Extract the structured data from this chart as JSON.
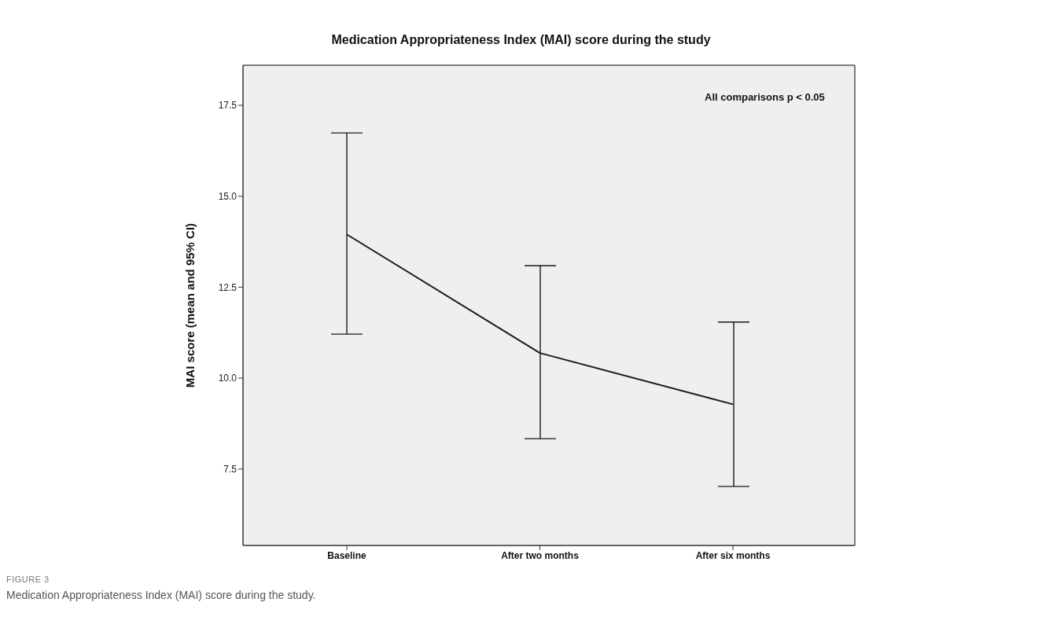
{
  "chart_data": {
    "type": "line",
    "title": "Medication Appropriateness Index (MAI) score during the study",
    "ylabel": "MAI score (mean and 95% CI)",
    "categories": [
      "Baseline",
      "After two months",
      "After six months"
    ],
    "series": [
      {
        "color": "#1a1a1a",
        "values": [
          13.95,
          10.69,
          9.28
        ],
        "errors": [
          [
            11.2,
            16.72
          ],
          [
            8.33,
            13.08
          ],
          [
            7.02,
            11.53
          ]
        ]
      }
    ],
    "ylim": [
      5.4,
      18.6
    ],
    "yticks": [
      {
        "value": 7.5,
        "label": "7.5"
      },
      {
        "value": 10,
        "label": "10.0"
      },
      {
        "value": 12.5,
        "label": "12.5"
      },
      {
        "value": 15,
        "label": "15.0"
      },
      {
        "value": 17.5,
        "label": "17.5"
      }
    ],
    "marker": "none",
    "legend": false,
    "annotations": [
      "All comparisons p < 0.05",
      "FIGURE 3",
      "Medication Appropriateness Index (MAI) score during the study."
    ]
  }
}
